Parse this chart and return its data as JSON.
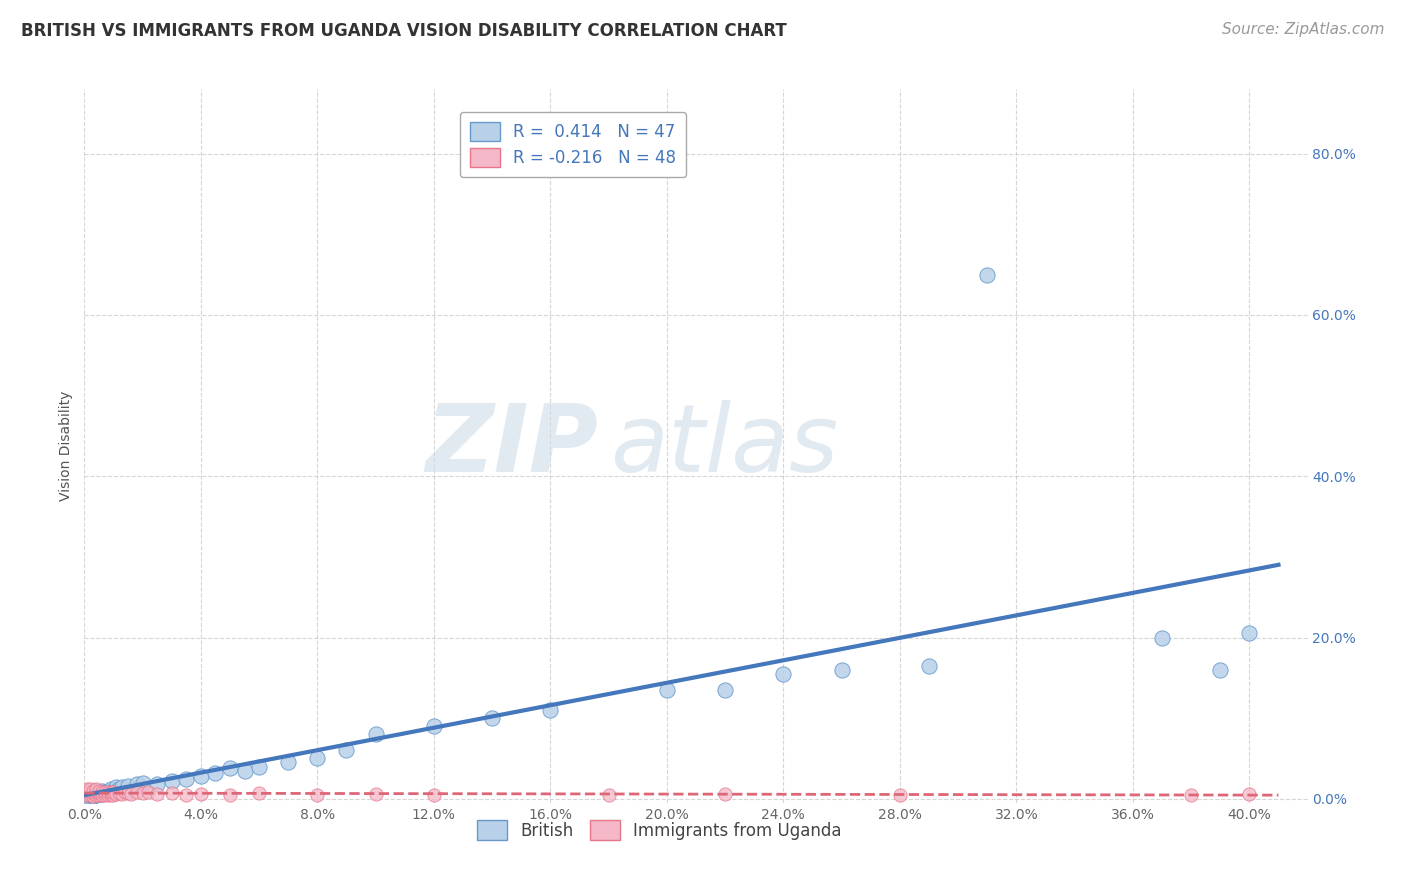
{
  "title": "BRITISH VS IMMIGRANTS FROM UGANDA VISION DISABILITY CORRELATION CHART",
  "source": "Source: ZipAtlas.com",
  "ylabel": "Vision Disability",
  "xlabel": "",
  "watermark_ZIP": "ZIP",
  "watermark_atlas": "atlas",
  "blue_label": "British",
  "pink_label": "Immigrants from Uganda",
  "blue_R": 0.414,
  "blue_N": 47,
  "pink_R": -0.216,
  "pink_N": 48,
  "blue_color": "#b8d0e8",
  "pink_color": "#f4b8c8",
  "blue_edge_color": "#6699cc",
  "pink_edge_color": "#e8758a",
  "blue_line_color": "#4477bb",
  "pink_line_color": "#dd6677",
  "xlim": [
    0.0,
    0.42
  ],
  "ylim": [
    -0.005,
    0.88
  ],
  "xticks": [
    0.0,
    0.04,
    0.08,
    0.12,
    0.16,
    0.2,
    0.24,
    0.28,
    0.32,
    0.36,
    0.4
  ],
  "yticks": [
    0.0,
    0.2,
    0.4,
    0.6,
    0.8
  ],
  "blue_x": [
    0.001,
    0.001,
    0.002,
    0.002,
    0.003,
    0.003,
    0.003,
    0.004,
    0.004,
    0.005,
    0.005,
    0.006,
    0.006,
    0.007,
    0.008,
    0.009,
    0.01,
    0.011,
    0.012,
    0.013,
    0.015,
    0.018,
    0.02,
    0.025,
    0.03,
    0.035,
    0.04,
    0.045,
    0.05,
    0.055,
    0.06,
    0.07,
    0.08,
    0.09,
    0.1,
    0.12,
    0.14,
    0.16,
    0.2,
    0.22,
    0.24,
    0.26,
    0.29,
    0.31,
    0.37,
    0.39,
    0.4
  ],
  "blue_y": [
    0.004,
    0.006,
    0.005,
    0.008,
    0.004,
    0.007,
    0.01,
    0.005,
    0.01,
    0.006,
    0.009,
    0.006,
    0.01,
    0.008,
    0.01,
    0.012,
    0.01,
    0.014,
    0.012,
    0.015,
    0.016,
    0.018,
    0.02,
    0.018,
    0.022,
    0.025,
    0.028,
    0.032,
    0.038,
    0.035,
    0.04,
    0.045,
    0.05,
    0.06,
    0.08,
    0.09,
    0.1,
    0.11,
    0.135,
    0.135,
    0.155,
    0.16,
    0.165,
    0.65,
    0.2,
    0.16,
    0.205
  ],
  "pink_x": [
    0.001,
    0.001,
    0.001,
    0.002,
    0.002,
    0.002,
    0.003,
    0.003,
    0.003,
    0.004,
    0.004,
    0.004,
    0.005,
    0.005,
    0.005,
    0.006,
    0.006,
    0.007,
    0.007,
    0.008,
    0.008,
    0.009,
    0.009,
    0.01,
    0.01,
    0.011,
    0.012,
    0.013,
    0.014,
    0.015,
    0.016,
    0.018,
    0.02,
    0.022,
    0.025,
    0.03,
    0.035,
    0.04,
    0.05,
    0.06,
    0.08,
    0.1,
    0.12,
    0.18,
    0.22,
    0.28,
    0.38,
    0.4
  ],
  "pink_y": [
    0.005,
    0.008,
    0.012,
    0.005,
    0.008,
    0.012,
    0.004,
    0.007,
    0.01,
    0.005,
    0.008,
    0.012,
    0.005,
    0.007,
    0.01,
    0.005,
    0.008,
    0.005,
    0.008,
    0.005,
    0.008,
    0.005,
    0.008,
    0.005,
    0.008,
    0.006,
    0.007,
    0.006,
    0.008,
    0.007,
    0.006,
    0.008,
    0.007,
    0.008,
    0.006,
    0.007,
    0.005,
    0.006,
    0.005,
    0.007,
    0.005,
    0.006,
    0.005,
    0.005,
    0.006,
    0.005,
    0.005,
    0.006
  ],
  "background_color": "#ffffff",
  "grid_color": "#bbbbbb",
  "title_fontsize": 12,
  "axis_label_fontsize": 10,
  "tick_fontsize": 10,
  "legend_fontsize": 12,
  "source_fontsize": 11
}
